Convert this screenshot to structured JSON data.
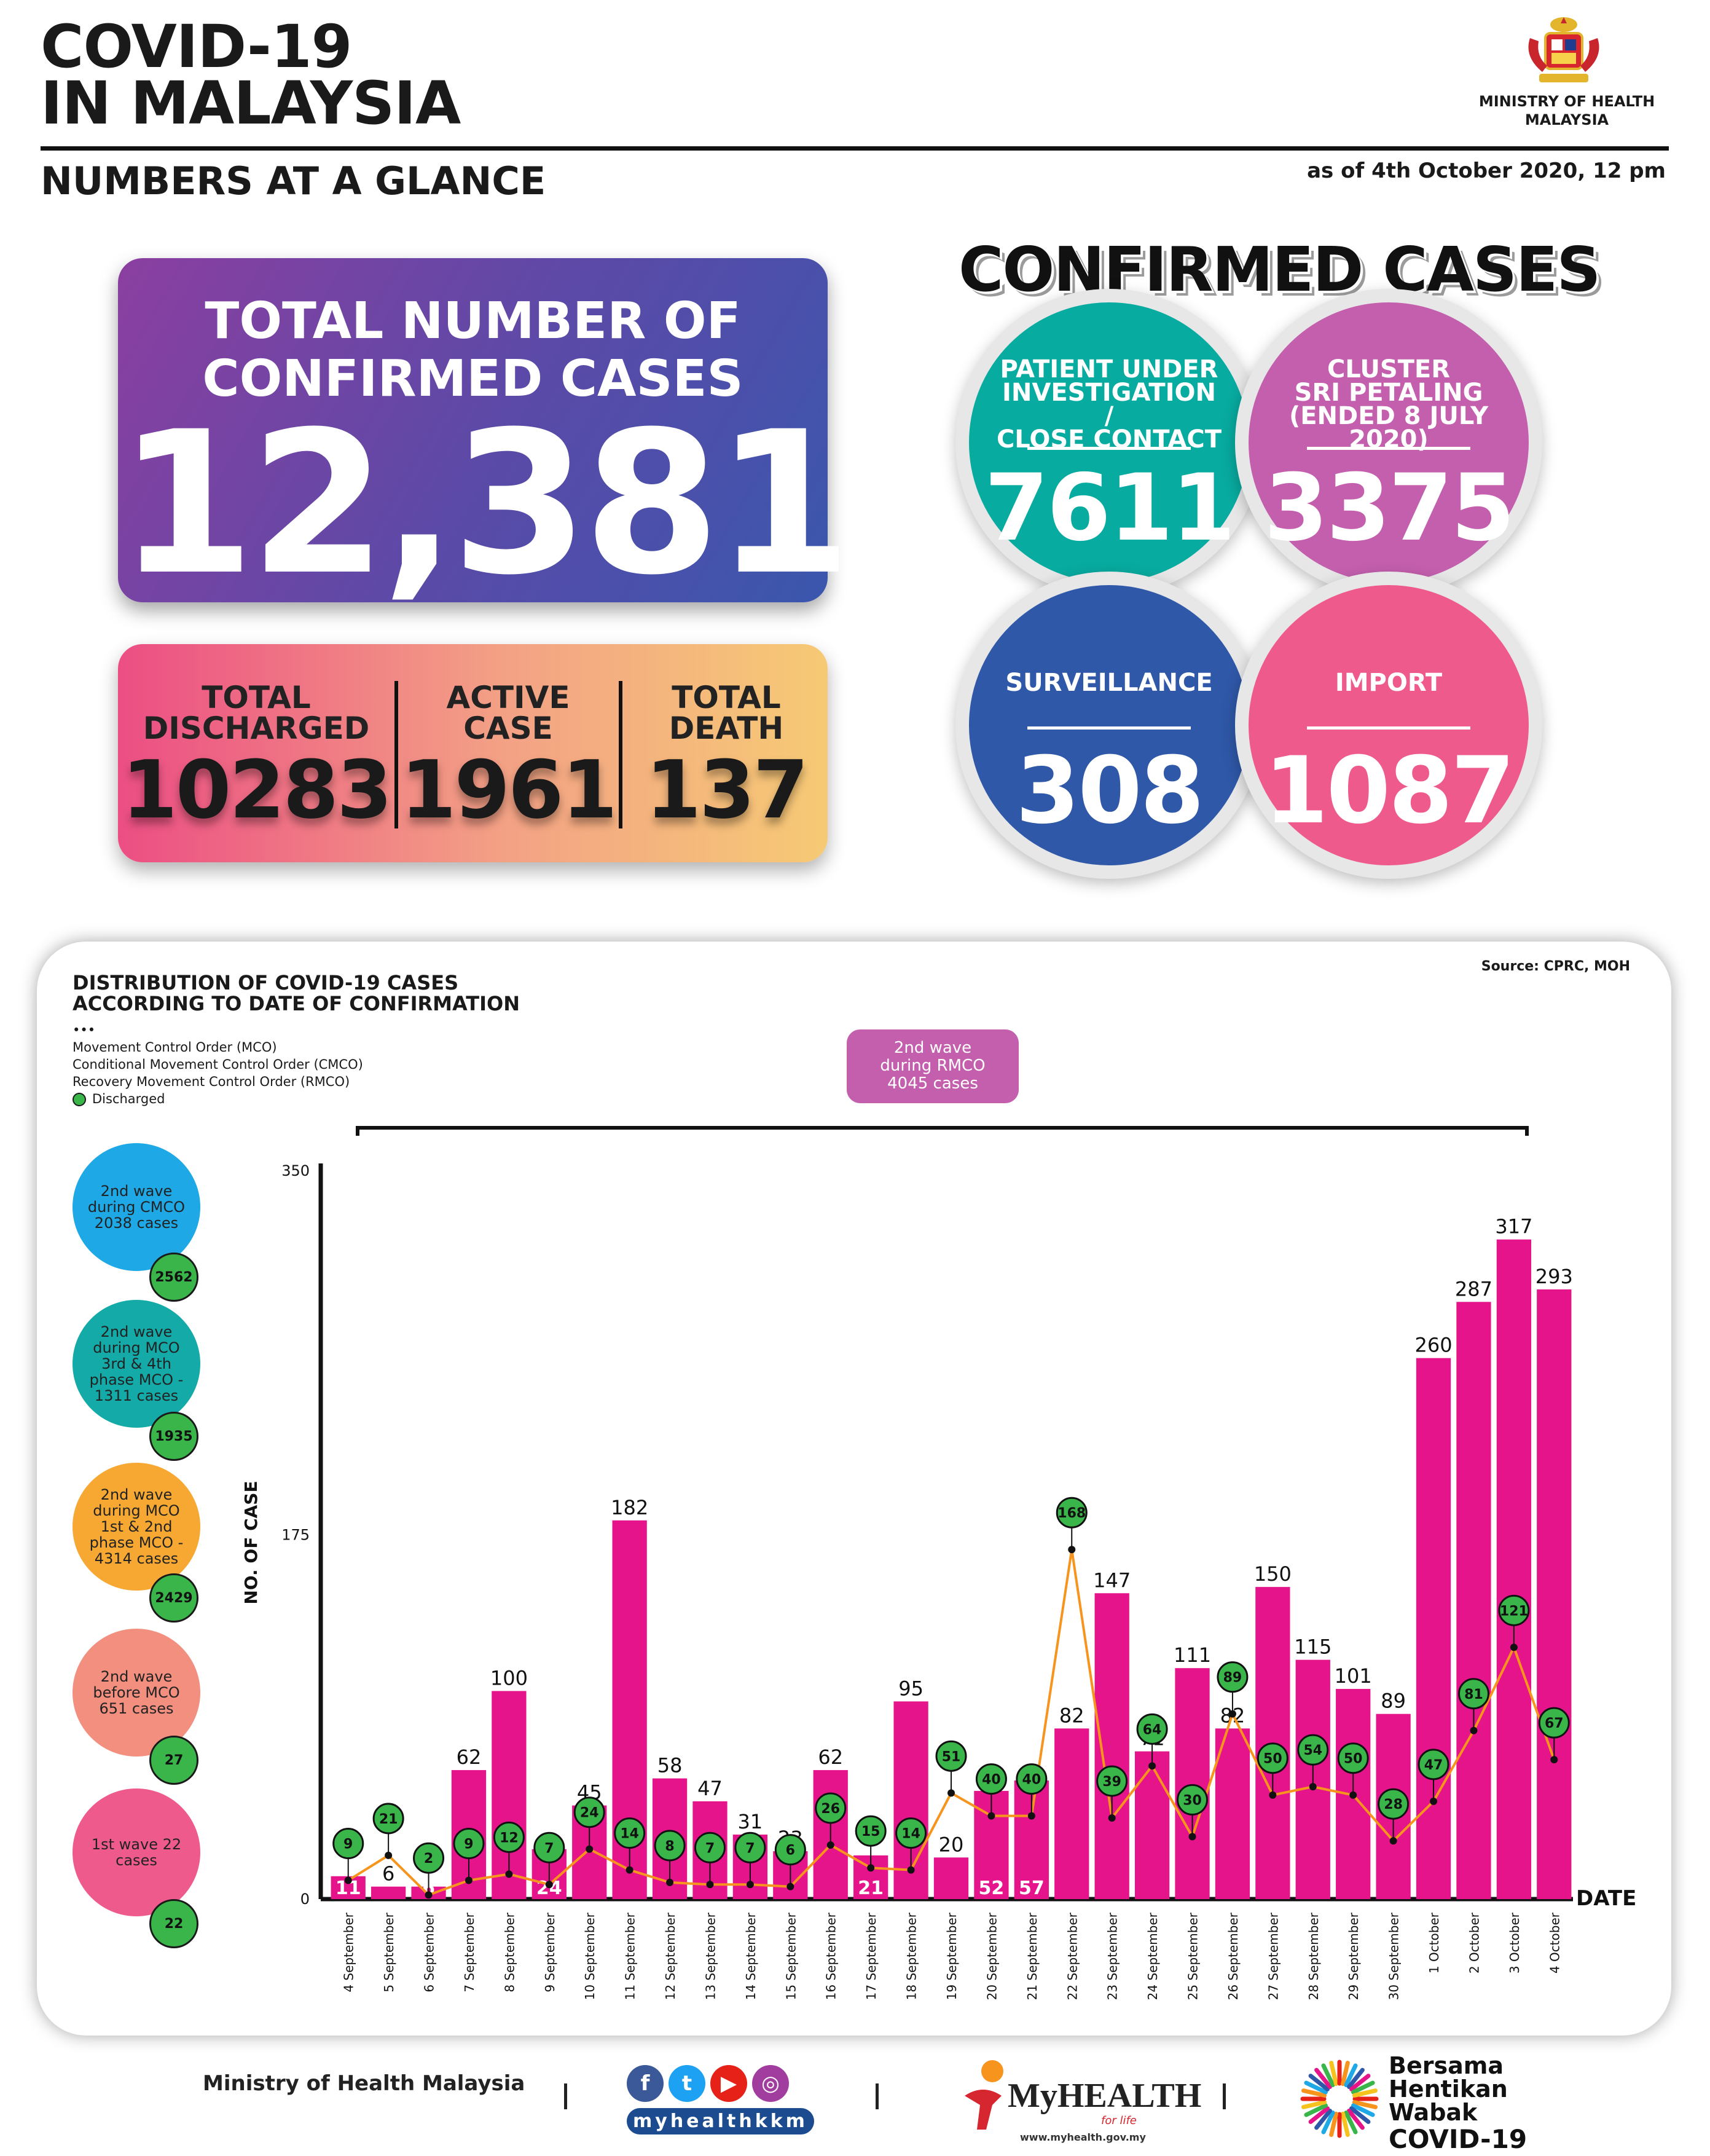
{
  "header": {
    "title_line1": "COVID-19",
    "title_line2": "IN MALAYSIA",
    "subtitle": "NUMBERS AT A GLANCE",
    "as_of": "as of 4th October 2020, 12 pm",
    "ministry_line1": "MINISTRY OF HEALTH",
    "ministry_line2": "MALAYSIA"
  },
  "total_box": {
    "label_line1": "TOTAL NUMBER OF",
    "label_line2": "CONFIRMED CASES",
    "value": "12,381"
  },
  "stats": {
    "discharged_label1": "TOTAL",
    "discharged_label2": "DISCHARGED",
    "discharged_value": "10283",
    "active_label1": "ACTIVE",
    "active_label2": "CASE",
    "active_value": "1961",
    "death_label1": "TOTAL",
    "death_label2": "DEATH",
    "death_value": "137"
  },
  "confirmed_cases": {
    "title": "CONFIRMED CASES",
    "pui_label1": "PATIENT UNDER",
    "pui_label2": "INVESTIGATION /",
    "pui_label3": "CLOSE CONTACT",
    "pui_value": "7611",
    "cluster_label1": "CLUSTER",
    "cluster_label2": "SRI PETALING",
    "cluster_label3": "(ENDED 8 JULY 2020)",
    "cluster_value": "3375",
    "surveillance_label": "SURVEILLANCE",
    "surveillance_value": "308",
    "import_label": "IMPORT",
    "import_value": "1087",
    "colors": {
      "pui": "#08aba0",
      "cluster": "#c45fae",
      "surveillance": "#2f58a8",
      "import": "#ef5a8c"
    }
  },
  "chart_section": {
    "title_line1": "DISTRIBUTION OF COVID-19 CASES",
    "title_line2": "ACCORDING TO DATE OF CONFIRMATION",
    "source": "Source: CPRC, MOH",
    "legend_mco": "Movement Control Order (MCO)",
    "legend_cmco": "Conditional Movement Control Order (CMCO)",
    "legend_rmco": "Recovery Movement Control Order (RMCO)",
    "legend_discharged": "Discharged",
    "wave_tag_line1": "2nd wave",
    "wave_tag_line2": "during RMCO",
    "wave_tag_line3": "4045 cases"
  },
  "side_waves": [
    {
      "text": "2nd wave during CMCO 2038 cases",
      "badge": "2562",
      "color": "#1ea9e6"
    },
    {
      "text": "2nd wave during MCO 3rd & 4th phase MCO - 1311 cases",
      "badge": "1935",
      "color": "#14aaa8"
    },
    {
      "text": "2nd wave during MCO 1st & 2nd phase MCO - 4314 cases",
      "badge": "2429",
      "color": "#f7a833"
    },
    {
      "text": "2nd wave before MCO 651 cases",
      "badge": "27",
      "color": "#f28f7f"
    },
    {
      "text": "1st wave 22 cases",
      "badge": "22",
      "color": "#ef5a8c"
    }
  ],
  "chart_data": {
    "type": "bar",
    "ylabel": "NO. OF CASE",
    "xlabel": "DATE",
    "ylim": [
      0,
      350
    ],
    "yticks": [
      0,
      175,
      350
    ],
    "bar_color": "#e5148b",
    "discharged_color": "#39b54a",
    "line_color": "#f7941d",
    "categories": [
      "4 September",
      "5 September",
      "6 September",
      "7 September",
      "8 September",
      "9 September",
      "10 September",
      "11 September",
      "12 September",
      "13 September",
      "14 September",
      "15 September",
      "16 September",
      "17 September",
      "18 September",
      "19 September",
      "20 September",
      "21 September",
      "22 September",
      "23 September",
      "24 September",
      "25 September",
      "26 September",
      "27 September",
      "28 September",
      "29 September",
      "30 September",
      "1 October",
      "2 October",
      "3 October",
      "4 October"
    ],
    "series": [
      {
        "name": "Confirmed",
        "values": [
          11,
          6,
          6,
          62,
          100,
          24,
          45,
          182,
          58,
          47,
          31,
          23,
          62,
          21,
          95,
          20,
          52,
          57,
          82,
          147,
          71,
          111,
          82,
          150,
          115,
          101,
          89,
          260,
          287,
          317,
          293
        ]
      },
      {
        "name": "Discharged",
        "values": [
          9,
          21,
          2,
          9,
          12,
          7,
          24,
          14,
          8,
          7,
          7,
          6,
          26,
          15,
          14,
          51,
          40,
          40,
          168,
          39,
          64,
          30,
          89,
          50,
          54,
          50,
          28,
          47,
          81,
          121,
          67
        ]
      }
    ]
  },
  "footer": {
    "ministry": "Ministry of Health Malaysia",
    "social_handle": "myhealthkkm",
    "myhealth_brand": "MyHEALTH",
    "myhealth_tag": "for life",
    "myhealth_url": "www.myhealth.gov.my",
    "bersama_line1": "Bersama",
    "bersama_line2": "Hentikan",
    "bersama_line3": "Wabak",
    "bersama_line4": "COVID-19"
  }
}
